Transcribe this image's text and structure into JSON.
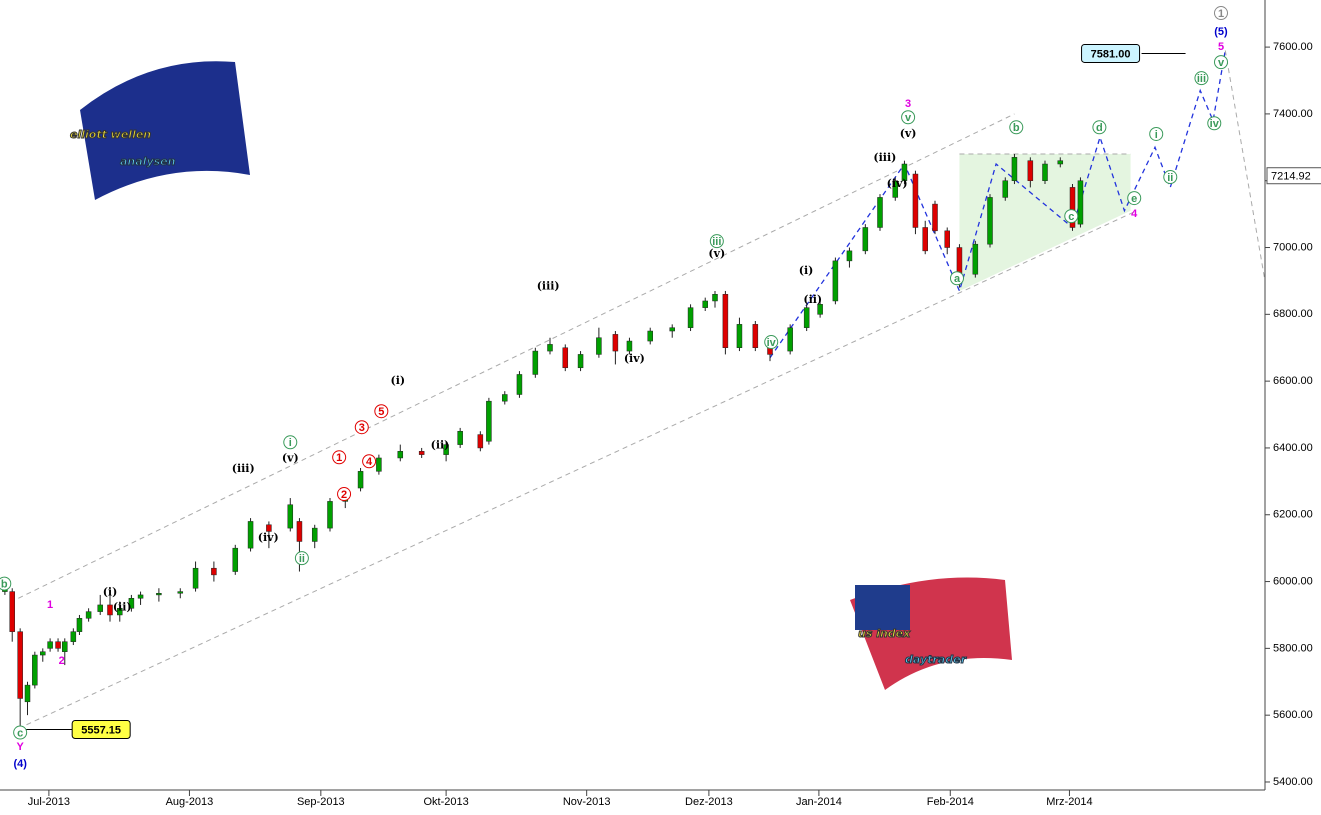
{
  "chart_data": {
    "type": "candlestick",
    "up_color": "#00a000",
    "down_color": "#dd0000",
    "xlim": [
      0,
      207
    ],
    "ylim": [
      5376,
      7741
    ],
    "xticks": [
      {
        "value": 8,
        "label": "Jul-2013"
      },
      {
        "value": 31,
        "label": "Aug-2013"
      },
      {
        "value": 52.5,
        "label": "Sep-2013"
      },
      {
        "value": 73,
        "label": "Okt-2013"
      },
      {
        "value": 96,
        "label": "Nov-2013"
      },
      {
        "value": 116,
        "label": "Dez-2013"
      },
      {
        "value": 134,
        "label": "Jan-2014"
      },
      {
        "value": 155.5,
        "label": "Feb-2014"
      },
      {
        "value": 175,
        "label": "Mrz-2014"
      }
    ],
    "yticks": [
      {
        "value": 5400,
        "label": "5400.00"
      },
      {
        "value": 5600,
        "label": "5600.00"
      },
      {
        "value": 5800,
        "label": "5800.00"
      },
      {
        "value": 6000,
        "label": "6000.00"
      },
      {
        "value": 6200,
        "label": "6200.00"
      },
      {
        "value": 6400,
        "label": "6400.00"
      },
      {
        "value": 6600,
        "label": "6600.00"
      },
      {
        "value": 6800,
        "label": "6800.00"
      },
      {
        "value": 7000,
        "label": "7000.00"
      },
      {
        "value": 7200,
        "label": "7200.00"
      },
      {
        "value": 7400,
        "label": "7400.00"
      },
      {
        "value": 7600,
        "label": "7600.00"
      }
    ],
    "x": [
      0.8,
      2,
      3.3,
      4.5,
      5.7,
      7,
      8.2,
      9.5,
      10.6,
      12,
      13,
      14.5,
      16.4,
      18,
      19.6,
      21.5,
      23,
      26,
      29.5,
      32,
      35,
      38.5,
      41,
      44,
      47.5,
      49,
      51.5,
      54,
      56.5,
      59,
      62,
      65.5,
      69,
      73,
      75.3,
      78.6,
      80,
      82.6,
      85,
      87.6,
      90,
      92.5,
      95,
      98,
      100.7,
      103,
      106.4,
      110,
      113,
      115.4,
      117,
      118.7,
      121,
      123.6,
      126,
      129.3,
      132,
      134.2,
      136.7,
      139,
      141.6,
      144,
      146.5,
      148,
      149.8,
      151.4,
      153,
      155,
      157,
      159.6,
      162,
      164.5,
      166,
      168.6,
      171,
      173.5,
      175.5,
      176.8
    ],
    "open": [
      5970,
      5970,
      5850,
      5640,
      5690,
      5780,
      5800,
      5820,
      5790,
      5820,
      5850,
      5890,
      5910,
      5930,
      5900,
      5920,
      5950,
      5960,
      5965,
      5980,
      6040,
      6030,
      6100,
      6170,
      6160,
      6180,
      6120,
      6160,
      6240,
      6280,
      6330,
      6370,
      6390,
      6380,
      6410,
      6440,
      6420,
      6540,
      6560,
      6620,
      6690,
      6700,
      6640,
      6680,
      6740,
      6690,
      6720,
      6750,
      6760,
      6820,
      6840,
      6860,
      6700,
      6770,
      6700,
      6690,
      6760,
      6800,
      6840,
      6960,
      6990,
      7060,
      7150,
      7200,
      7220,
      7060,
      7130,
      7050,
      7000,
      6920,
      7010,
      7150,
      7200,
      7260,
      7200,
      7250,
      7180,
      7070
    ],
    "high": [
      5990,
      5980,
      5860,
      5700,
      5790,
      5800,
      5830,
      5830,
      5830,
      5860,
      5900,
      5920,
      5960,
      5960,
      5940,
      5960,
      5970,
      5980,
      5980,
      6060,
      6060,
      6110,
      6190,
      6180,
      6250,
      6190,
      6170,
      6250,
      6280,
      6340,
      6380,
      6410,
      6400,
      6420,
      6460,
      6450,
      6550,
      6570,
      6630,
      6700,
      6730,
      6710,
      6690,
      6760,
      6750,
      6730,
      6760,
      6770,
      6830,
      6850,
      6870,
      6870,
      6790,
      6780,
      6720,
      6770,
      6830,
      6840,
      6970,
      7000,
      7070,
      7160,
      7210,
      7260,
      7230,
      7080,
      7140,
      7060,
      7010,
      7020,
      7160,
      7210,
      7280,
      7270,
      7260,
      7270,
      7190,
      7210
    ],
    "low": [
      5960,
      5820,
      5557.15,
      5600,
      5680,
      5760,
      5790,
      5790,
      5750,
      5810,
      5840,
      5880,
      5900,
      5880,
      5880,
      5910,
      5930,
      5940,
      5950,
      5970,
      6000,
      6020,
      6090,
      6100,
      6150,
      6030,
      6100,
      6150,
      6220,
      6270,
      6320,
      6360,
      6370,
      6360,
      6400,
      6390,
      6410,
      6530,
      6550,
      6610,
      6680,
      6630,
      6630,
      6670,
      6650,
      6680,
      6710,
      6730,
      6750,
      6810,
      6820,
      6680,
      6690,
      6690,
      6660,
      6680,
      6750,
      6790,
      6830,
      6940,
      6980,
      7050,
      7140,
      7190,
      7040,
      6980,
      7040,
      6980,
      6880,
      6910,
      7000,
      7140,
      7190,
      7180,
      7190,
      7240,
      7050,
      7060
    ],
    "close": [
      5980,
      5850,
      5650,
      5690,
      5780,
      5790,
      5820,
      5800,
      5820,
      5850,
      5890,
      5910,
      5930,
      5900,
      5920,
      5950,
      5960,
      5965,
      5970,
      6040,
      6020,
      6100,
      6180,
      6150,
      6230,
      6120,
      6160,
      6240,
      6270,
      6330,
      6370,
      6390,
      6380,
      6410,
      6450,
      6400,
      6540,
      6560,
      6620,
      6690,
      6710,
      6640,
      6680,
      6730,
      6690,
      6720,
      6750,
      6760,
      6820,
      6840,
      6860,
      6700,
      6770,
      6700,
      6680,
      6760,
      6820,
      6830,
      6960,
      6990,
      7060,
      7150,
      7200,
      7250,
      7060,
      6990,
      7050,
      7000,
      6920,
      7010,
      7150,
      7200,
      7270,
      7200,
      7250,
      7260,
      7060,
      7200
    ],
    "shade": {
      "color": "#e4f5e0",
      "x": [
        157,
        185,
        185,
        157
      ],
      "y": [
        7280,
        7280,
        7110,
        6870
      ]
    },
    "lines": [
      {
        "color": "#aaaaaa",
        "x": [
          3,
          166
        ],
        "y": [
          5950,
          7400
        ]
      },
      {
        "color": "#aaaaaa",
        "x": [
          3,
          186
        ],
        "y": [
          5560,
          7110
        ]
      },
      {
        "color": "#aaaaaa",
        "x": [
          157,
          185
        ],
        "y": [
          7280,
          7280
        ]
      },
      {
        "color": "#2233dd",
        "x": [
          126,
          148,
          157,
          163,
          175.5,
          180,
          184,
          189,
          191.5,
          196.4,
          198.5,
          200.5
        ],
        "y": [
          6670,
          7250,
          6870,
          7250,
          7060,
          7330,
          7110,
          7300,
          7180,
          7470,
          7380,
          7590
        ]
      },
      {
        "color": "#aaaaaa",
        "x": [
          200.5,
          207
        ],
        "y": [
          7590,
          6900
        ]
      }
    ],
    "price_labels": [
      {
        "value": 5557.15,
        "label": "5557.15",
        "x": 3.3,
        "color": "#ffff44"
      },
      {
        "value": 7581,
        "label": "7581.00",
        "x": 194,
        "color": "#ccf4ff"
      }
    ],
    "last_price": {
      "value": 7214.92,
      "label": "7214.92"
    },
    "annotations": [
      {
        "text": "(4)",
        "x": 3.3,
        "y": 5456,
        "color": "#0000cc"
      },
      {
        "text": "Y",
        "x": 3.3,
        "y": 5507,
        "color": "#e000e0"
      },
      {
        "text": "c",
        "x": 3.3,
        "y": 5548,
        "color": "#3a9a5a",
        "circle": true
      },
      {
        "text": "b",
        "x": 0.7,
        "y": 5994,
        "color": "#3a9a5a",
        "circle": true
      },
      {
        "text": "1",
        "x": 8.2,
        "y": 5932,
        "color": "#e000e0"
      },
      {
        "text": "2",
        "x": 10.1,
        "y": 5765,
        "color": "#e000e0"
      },
      {
        "text": "(i)",
        "x": 18,
        "y": 5970,
        "color": "#000000"
      },
      {
        "text": "(ii)",
        "x": 20,
        "y": 5926,
        "color": "#000000"
      },
      {
        "text": "(iii)",
        "x": 39.8,
        "y": 6340,
        "color": "#000000"
      },
      {
        "text": "(iv)",
        "x": 43.9,
        "y": 6133,
        "color": "#000000"
      },
      {
        "text": "(v)",
        "x": 47.5,
        "y": 6372,
        "color": "#000000"
      },
      {
        "text": "i",
        "x": 47.5,
        "y": 6417,
        "color": "#3a9a5a",
        "circle": true
      },
      {
        "text": "ii",
        "x": 49.4,
        "y": 6070,
        "color": "#3a9a5a",
        "circle": true
      },
      {
        "text": "1",
        "x": 55.5,
        "y": 6372,
        "color": "#e00000",
        "circle": true
      },
      {
        "text": "2",
        "x": 56.3,
        "y": 6262,
        "color": "#e00000",
        "circle": true
      },
      {
        "text": "3",
        "x": 59.2,
        "y": 6462,
        "color": "#e00000",
        "circle": true
      },
      {
        "text": "4",
        "x": 60.4,
        "y": 6360,
        "color": "#e00000",
        "circle": true
      },
      {
        "text": "5",
        "x": 62.4,
        "y": 6510,
        "color": "#e00000",
        "circle": true
      },
      {
        "text": "(i)",
        "x": 65.1,
        "y": 6603,
        "color": "#000000"
      },
      {
        "text": "(ii)",
        "x": 72,
        "y": 6411,
        "color": "#000000"
      },
      {
        "text": "(iii)",
        "x": 89.7,
        "y": 6887,
        "color": "#000000"
      },
      {
        "text": "(iv)",
        "x": 103.8,
        "y": 6669,
        "color": "#000000"
      },
      {
        "text": "iii",
        "x": 117.3,
        "y": 7019,
        "color": "#3a9a5a",
        "circle": true
      },
      {
        "text": "(v)",
        "x": 117.3,
        "y": 6983,
        "color": "#000000"
      },
      {
        "text": "iv",
        "x": 126.2,
        "y": 6717,
        "color": "#3a9a5a",
        "circle": true
      },
      {
        "text": "(i)",
        "x": 131.9,
        "y": 6932,
        "color": "#000000"
      },
      {
        "text": "(ii)",
        "x": 133,
        "y": 6846,
        "color": "#000000"
      },
      {
        "text": "(iii)",
        "x": 144.8,
        "y": 7271,
        "color": "#000000"
      },
      {
        "text": "(iv)",
        "x": 146.8,
        "y": 7193,
        "color": "#000000"
      },
      {
        "text": "(v)",
        "x": 148.6,
        "y": 7343,
        "color": "#000000"
      },
      {
        "text": "v",
        "x": 148.6,
        "y": 7390,
        "color": "#3a9a5a",
        "circle": true
      },
      {
        "text": "3",
        "x": 148.6,
        "y": 7432,
        "color": "#e000e0"
      },
      {
        "text": "a",
        "x": 156.6,
        "y": 6908,
        "color": "#3a9a5a",
        "circle": true
      },
      {
        "text": "b",
        "x": 166.3,
        "y": 7360,
        "color": "#3a9a5a",
        "circle": true
      },
      {
        "text": "c",
        "x": 175.3,
        "y": 7094,
        "color": "#3a9a5a",
        "circle": true
      },
      {
        "text": "d",
        "x": 179.9,
        "y": 7360,
        "color": "#3a9a5a",
        "circle": true
      },
      {
        "text": "e",
        "x": 185.6,
        "y": 7148,
        "color": "#3a9a5a",
        "circle": true
      },
      {
        "text": "4",
        "x": 185.6,
        "y": 7103,
        "color": "#e000e0"
      },
      {
        "text": "i",
        "x": 189.2,
        "y": 7340,
        "color": "#3a9a5a",
        "circle": true
      },
      {
        "text": "ii",
        "x": 191.5,
        "y": 7211,
        "color": "#3a9a5a",
        "circle": true
      },
      {
        "text": "iii",
        "x": 196.6,
        "y": 7507,
        "color": "#3a9a5a",
        "circle": true
      },
      {
        "text": "iv",
        "x": 198.7,
        "y": 7372,
        "color": "#3a9a5a",
        "circle": true
      },
      {
        "text": "v",
        "x": 199.8,
        "y": 7555,
        "color": "#3a9a5a",
        "circle": true
      },
      {
        "text": "5",
        "x": 199.8,
        "y": 7603,
        "color": "#e000e0"
      },
      {
        "text": "(5)",
        "x": 199.8,
        "y": 7648,
        "color": "#0000cc"
      },
      {
        "text": "1",
        "x": 199.8,
        "y": 7702,
        "color": "#888888",
        "circle": true
      }
    ],
    "logos": [
      {
        "line1": "elliott wellen",
        "line2": "analysen"
      },
      {
        "line1": "us index",
        "line2": "daytrader"
      }
    ]
  }
}
